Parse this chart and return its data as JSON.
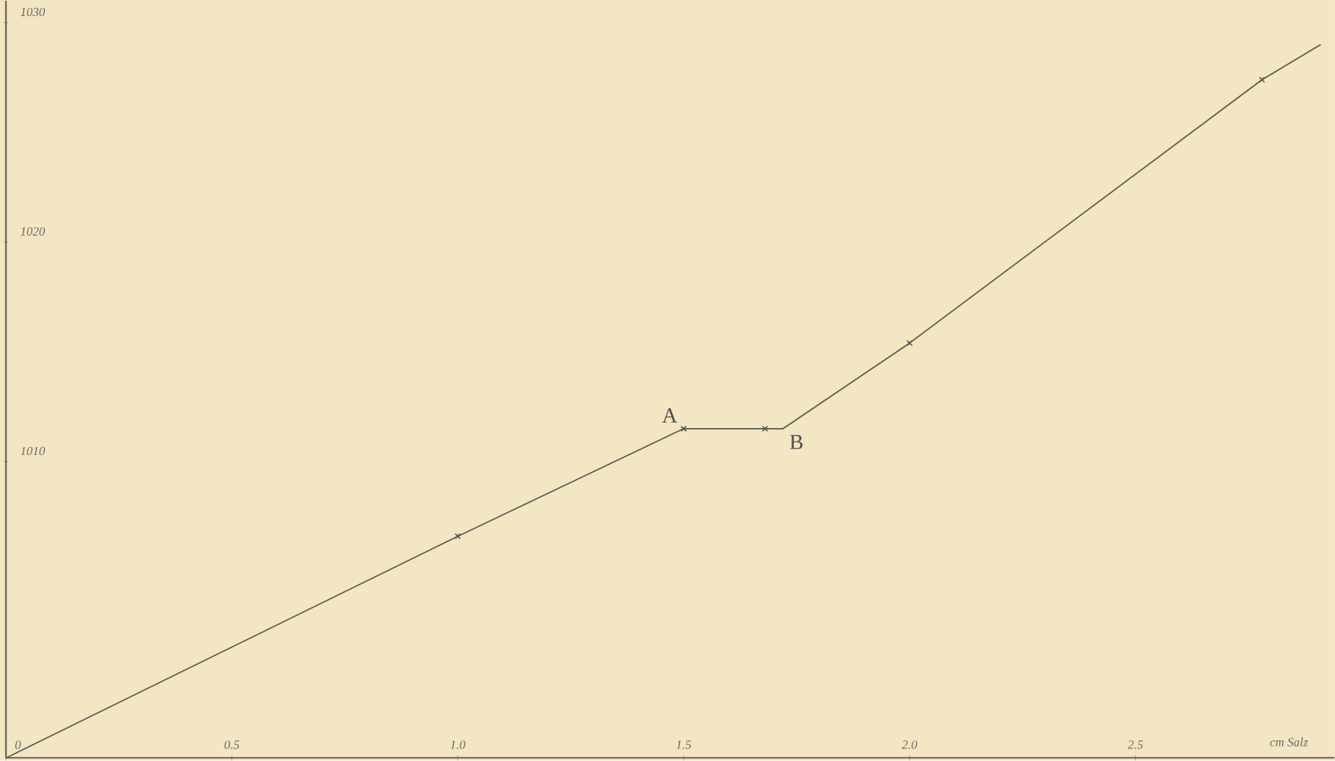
{
  "chart_data": {
    "type": "line",
    "xlabel": "cm Salz",
    "xlim": [
      0,
      2.94
    ],
    "ylim": [
      996.5,
      1031
    ],
    "xticks": [
      {
        "value": 0,
        "label": "0"
      },
      0.5,
      {
        "value": 1.0,
        "label": "1.0"
      },
      1.5,
      {
        "value": 2.0,
        "label": "2.0"
      },
      2.5
    ],
    "yticks": [
      1010,
      1020,
      1030
    ],
    "series": [
      {
        "color": "#555550",
        "x": [
          0,
          1.0,
          1.5,
          1.68,
          1.72,
          2.0,
          2.78,
          2.91
        ],
        "values": [
          996.5,
          1006.6,
          1011.5,
          1011.5,
          1011.5,
          1015.4,
          1027.4,
          1029
        ]
      },
      {
        "type": "scatter",
        "marker": "cross",
        "color": "#555550",
        "x": [
          1.0,
          1.5,
          1.68,
          2.0,
          2.78
        ],
        "values": [
          1006.6,
          1011.5,
          1011.5,
          1015.4,
          1027.4
        ]
      }
    ],
    "annotations": [
      {
        "text": "A",
        "x": 1.5,
        "y": 1011.5
      },
      {
        "text": "B",
        "x": 1.72,
        "y": 1011.5
      }
    ],
    "grid": false
  }
}
